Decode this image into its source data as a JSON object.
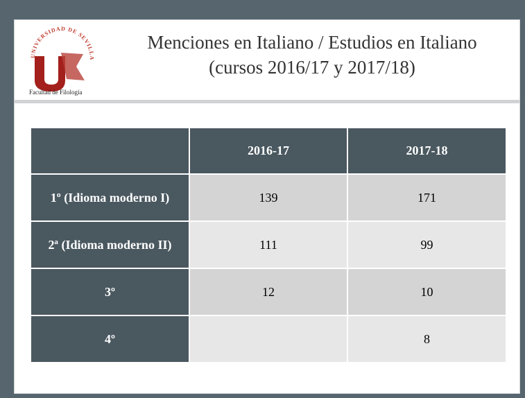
{
  "header": {
    "title": [
      "Menciones en Italiano / Estudios en Italiano",
      "(cursos 2016/17 y 2017/18)"
    ],
    "logo": {
      "arc": "UNIVERSIDAD DE SEVILLA",
      "faculty": "Facultad de Filología"
    }
  },
  "table": {
    "columns": [
      "2016-17",
      "2017-18"
    ],
    "rows": [
      {
        "label": "1º (Idioma moderno I)",
        "values": [
          139,
          171
        ]
      },
      {
        "label": "2ª (Idioma moderno II)",
        "values": [
          111,
          99
        ]
      },
      {
        "label": "3º",
        "values": [
          12,
          10
        ]
      },
      {
        "label": "4º",
        "values": [
          null,
          8
        ]
      }
    ]
  }
}
